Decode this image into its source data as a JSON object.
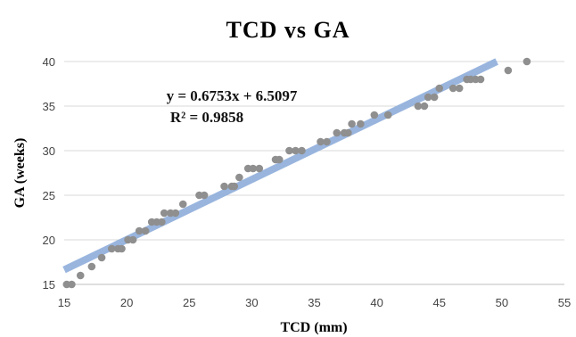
{
  "chart_data": {
    "type": "scatter",
    "title": "TCD vs GA",
    "xlabel": "TCD (mm)",
    "ylabel": "GA (weeks)",
    "xlim": [
      15,
      55
    ],
    "ylim": [
      15,
      40
    ],
    "xticks": [
      15,
      20,
      25,
      30,
      35,
      40,
      45,
      50,
      55
    ],
    "yticks": [
      15,
      20,
      25,
      30,
      35,
      40
    ],
    "grid": {
      "horizontal": true,
      "vertical": false
    },
    "colors": {
      "points": "#8f8f8f",
      "trendline": "#8eaedb",
      "grid": "#d9d9d9",
      "axis": "#bfbfbf"
    },
    "trendline": {
      "slope": 0.6753,
      "intercept": 6.5097,
      "equation": "y = 0.6753x + 6.5097",
      "r_squared": "R² = 0.9858"
    },
    "series": [
      {
        "points": [
          [
            15.2,
            15
          ],
          [
            15.6,
            15
          ],
          [
            16.3,
            16
          ],
          [
            17.2,
            17
          ],
          [
            18.0,
            18
          ],
          [
            18.8,
            19
          ],
          [
            19.3,
            19
          ],
          [
            19.6,
            19
          ],
          [
            20.1,
            20
          ],
          [
            20.5,
            20
          ],
          [
            21.0,
            21
          ],
          [
            21.5,
            21
          ],
          [
            22.0,
            22
          ],
          [
            22.4,
            22
          ],
          [
            22.8,
            22
          ],
          [
            23.0,
            23
          ],
          [
            23.5,
            23
          ],
          [
            23.9,
            23
          ],
          [
            24.5,
            24
          ],
          [
            25.8,
            25
          ],
          [
            26.2,
            25
          ],
          [
            27.8,
            26
          ],
          [
            28.4,
            26
          ],
          [
            28.6,
            26
          ],
          [
            29.0,
            27
          ],
          [
            29.7,
            28
          ],
          [
            30.1,
            28
          ],
          [
            30.6,
            28
          ],
          [
            31.9,
            29
          ],
          [
            32.2,
            29
          ],
          [
            33.0,
            30
          ],
          [
            33.5,
            30
          ],
          [
            34.0,
            30
          ],
          [
            35.5,
            31
          ],
          [
            36.0,
            31
          ],
          [
            36.8,
            32
          ],
          [
            37.4,
            32
          ],
          [
            37.7,
            32
          ],
          [
            38.0,
            33
          ],
          [
            38.7,
            33
          ],
          [
            39.8,
            34
          ],
          [
            40.9,
            34
          ],
          [
            43.3,
            35
          ],
          [
            43.8,
            35
          ],
          [
            44.1,
            36
          ],
          [
            44.6,
            36
          ],
          [
            45.0,
            37
          ],
          [
            46.1,
            37
          ],
          [
            46.6,
            37
          ],
          [
            47.2,
            38
          ],
          [
            47.5,
            38
          ],
          [
            47.9,
            38
          ],
          [
            48.3,
            38
          ],
          [
            50.5,
            39
          ],
          [
            52.0,
            40
          ]
        ]
      }
    ]
  }
}
